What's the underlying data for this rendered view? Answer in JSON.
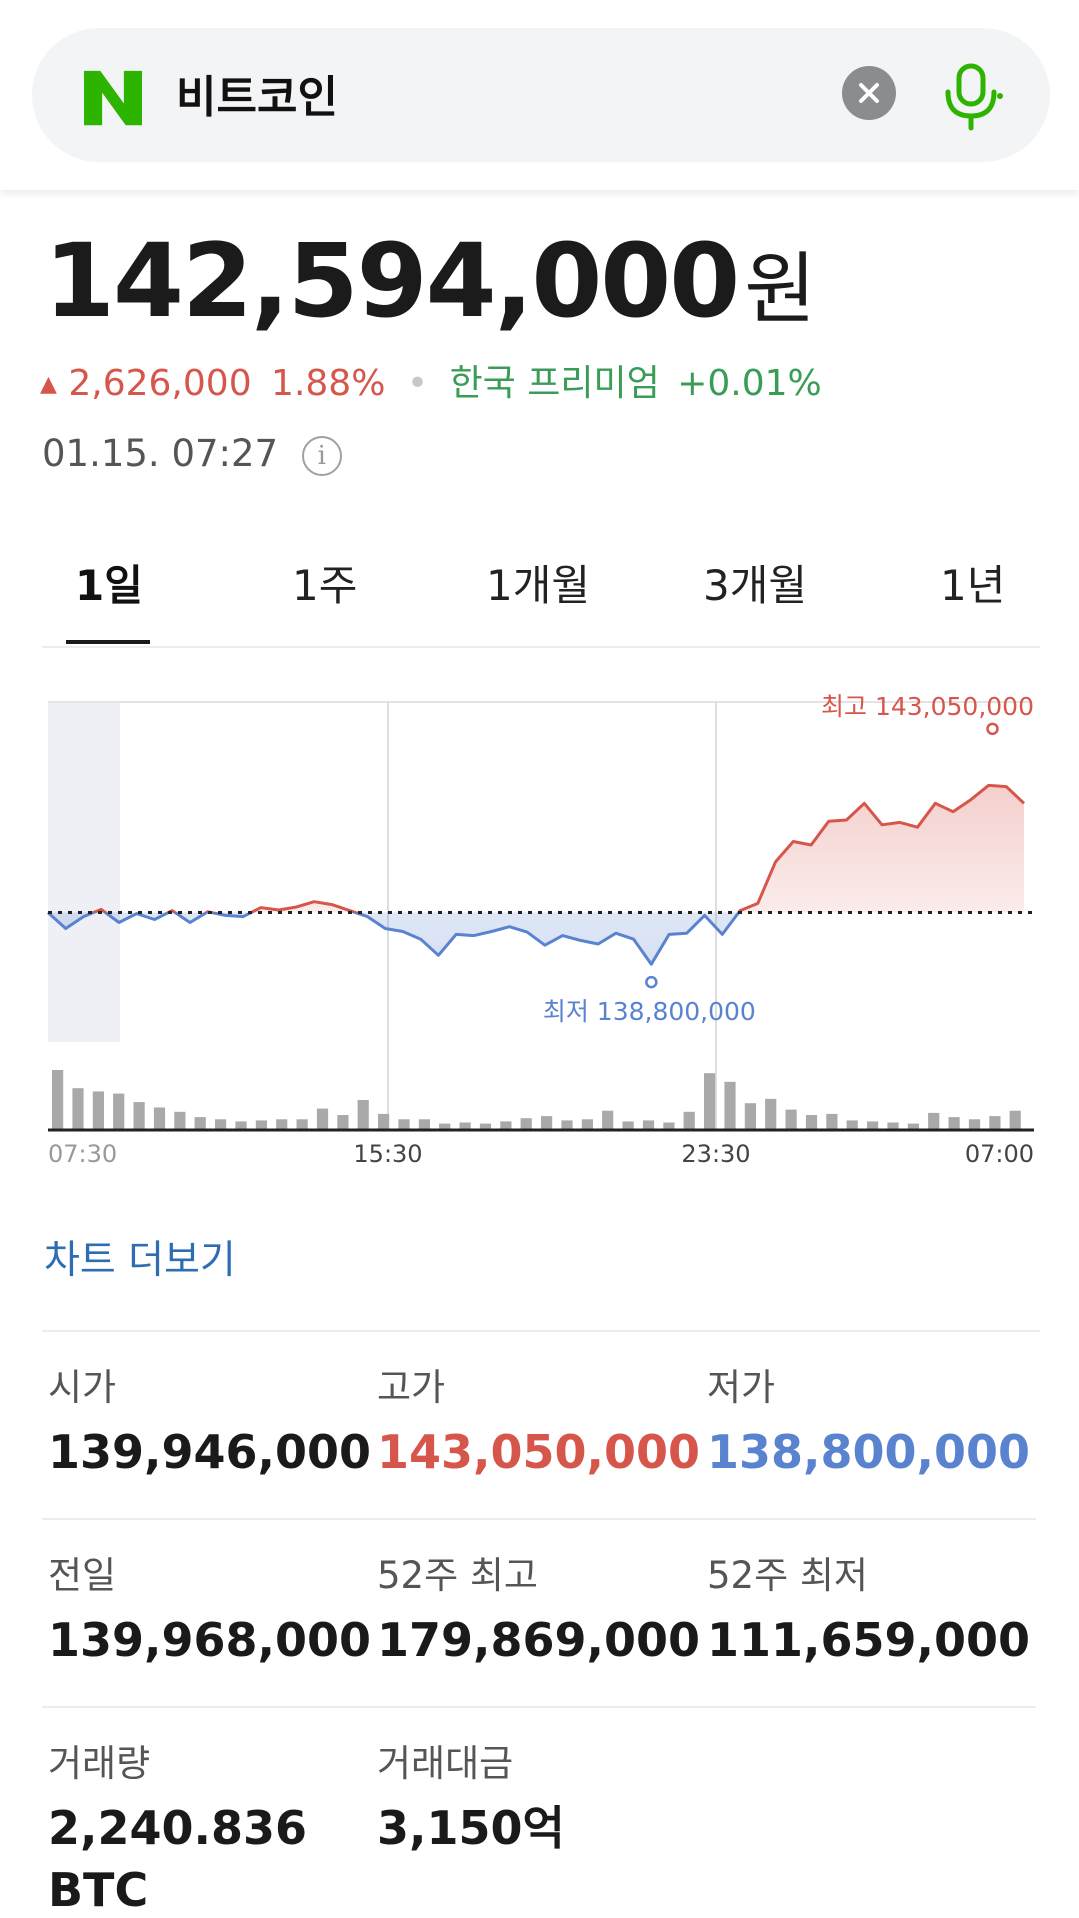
{
  "search": {
    "query": "비트코인",
    "brand_color": "#2db400",
    "clear_icon": "close-icon",
    "mic_icon": "microphone-icon"
  },
  "price": {
    "value": "142,594,000",
    "unit": "원",
    "change_arrow": "▲",
    "change_amount": "2,626,000",
    "change_percent": "1.88%",
    "premium_label": "한국 프리미엄",
    "premium_value": "+0.01%",
    "timestamp": "01.15. 07:27"
  },
  "tabs": [
    "1일",
    "1주",
    "1개월",
    "3개월",
    "1년"
  ],
  "chart_data": {
    "type": "line",
    "x_ticks": [
      "07:30",
      "15:30",
      "23:30",
      "07:00"
    ],
    "baseline": 139968000,
    "high_label": "최고 143,050,000",
    "low_label": "최저 138,800,000",
    "high": 143050000,
    "low": 138800000,
    "series": [
      {
        "values": [
          139968000,
          139700000,
          139900000,
          140020000,
          139800000,
          139950000,
          139850000,
          140000000,
          139800000,
          139980000,
          139920000,
          139900000,
          140050000,
          140010000,
          140060000,
          140150000,
          140100000,
          140000000,
          139900000,
          139700000,
          139650000,
          139520000,
          139250000,
          139600000,
          139580000,
          139650000,
          139730000,
          139640000,
          139420000,
          139580000,
          139500000,
          139440000,
          139620000,
          139520000,
          139100000,
          139600000,
          139620000,
          139920000,
          139600000,
          140000000,
          140120000,
          140820000,
          141160000,
          141100000,
          141500000,
          141520000,
          141800000,
          141440000,
          141480000,
          141400000,
          141800000,
          141660000,
          141860000,
          142100000,
          142080000,
          141800000
        ]
      }
    ],
    "volume": [
      56,
      39,
      36,
      34,
      26,
      21,
      17,
      12,
      10,
      8,
      9,
      10,
      10,
      20,
      14,
      28,
      15,
      10,
      10,
      6,
      7,
      6,
      8,
      11,
      13,
      9,
      10,
      18,
      8,
      9,
      7,
      17,
      53,
      45,
      25,
      29,
      19,
      14,
      15,
      9,
      8,
      7,
      6,
      16,
      12,
      10,
      13,
      18
    ],
    "colors": {
      "up": "#d6564c",
      "down": "#5a83cf",
      "volume": "#a9a9a9"
    }
  },
  "chart_more_label": "차트 더보기",
  "stats": [
    {
      "label": "시가",
      "value": "139,946,000",
      "tone": "normal"
    },
    {
      "label": "고가",
      "value": "143,050,000",
      "tone": "red"
    },
    {
      "label": "저가",
      "value": "138,800,000",
      "tone": "blue"
    },
    {
      "label": "전일",
      "value": "139,968,000",
      "tone": "normal"
    },
    {
      "label": "52주 최고",
      "value": "179,869,000",
      "tone": "normal"
    },
    {
      "label": "52주 최저",
      "value": "111,659,000",
      "tone": "normal"
    },
    {
      "label": "거래량",
      "value": "2,240.836",
      "tone": "normal"
    },
    {
      "label": "거래대금",
      "value": "3,150억",
      "tone": "normal"
    }
  ],
  "volume_unit": "BTC"
}
